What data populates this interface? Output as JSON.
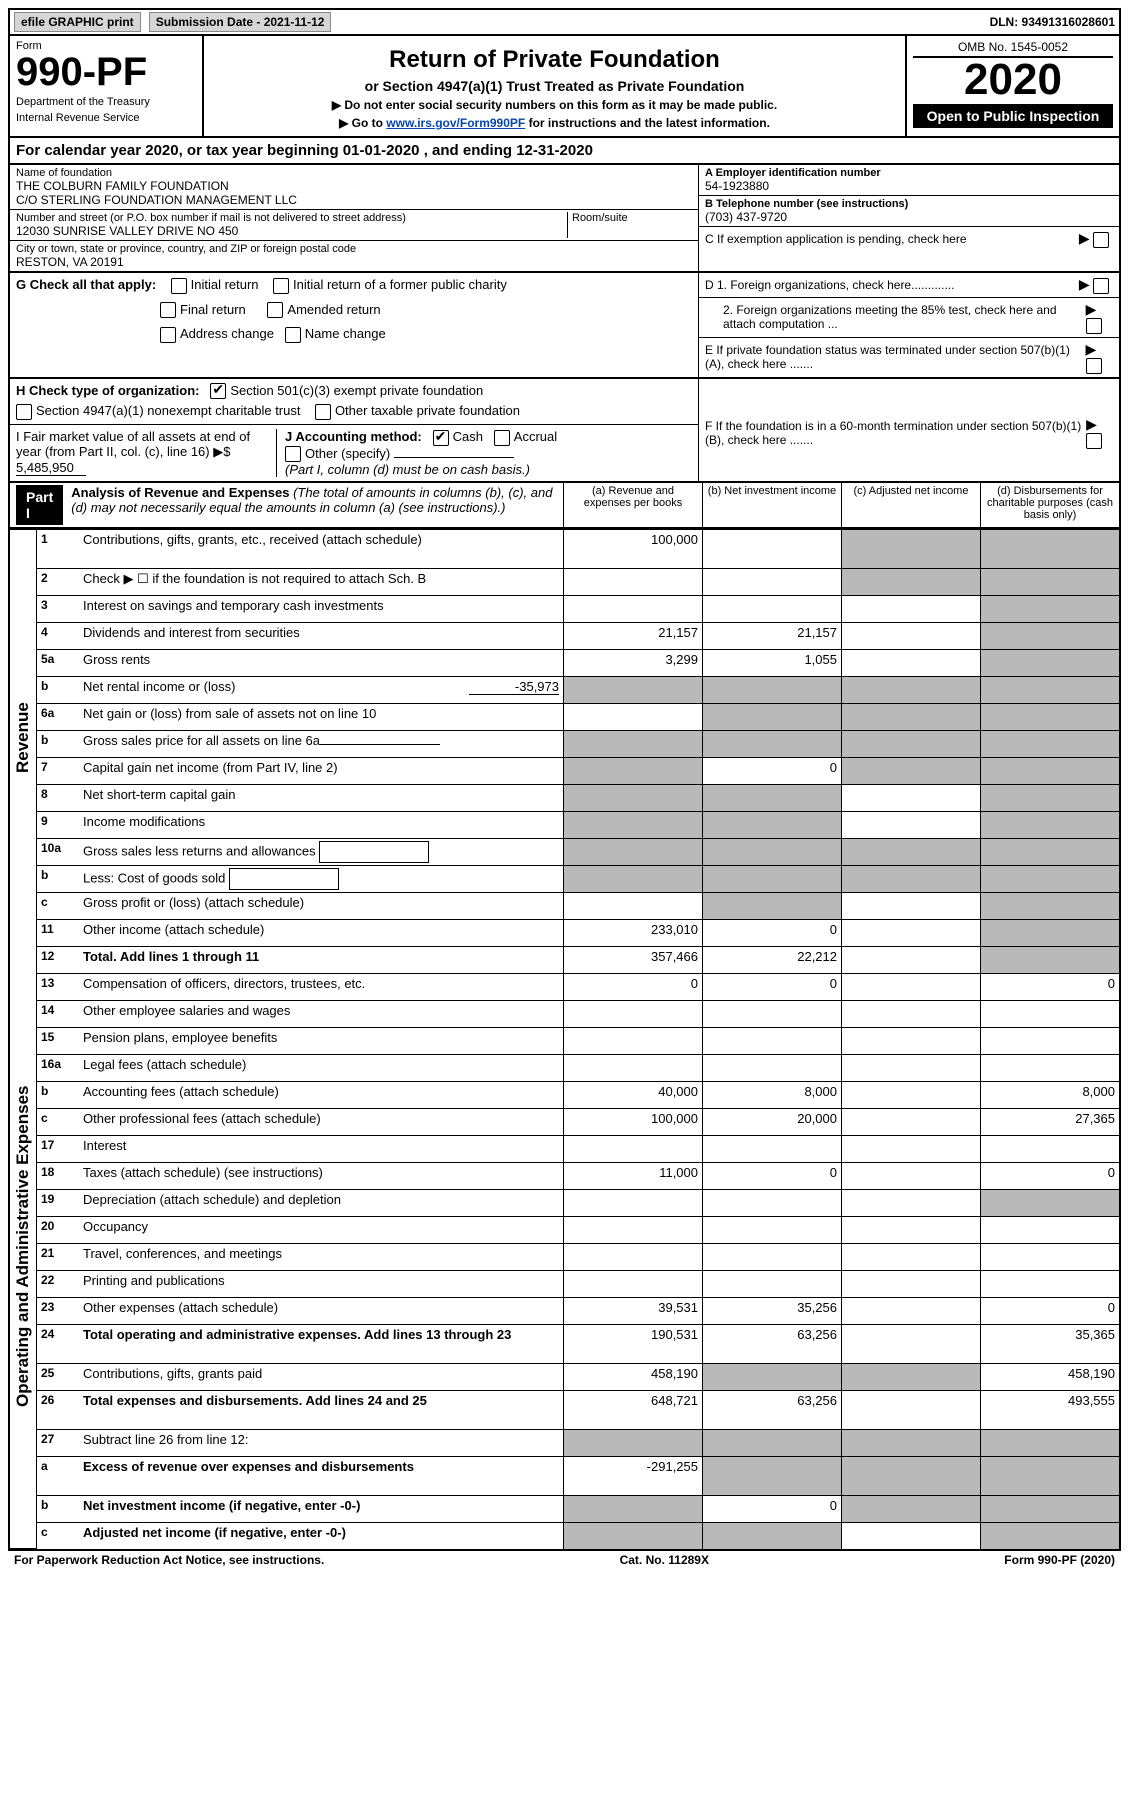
{
  "top_bar": {
    "efile": "efile GRAPHIC print",
    "sub_label": "Submission Date - 2021-11-12",
    "dln": "DLN: 93491316028601"
  },
  "header": {
    "form_label": "Form",
    "form_number": "990-PF",
    "dept": "Department of the Treasury",
    "irs": "Internal Revenue Service",
    "title": "Return of Private Foundation",
    "subtitle": "or Section 4947(a)(1) Trust Treated as Private Foundation",
    "note1": "▶ Do not enter social security numbers on this form as it may be made public.",
    "note2_pre": "▶ Go to ",
    "note2_link": "www.irs.gov/Form990PF",
    "note2_post": " for instructions and the latest information.",
    "omb": "OMB No. 1545-0052",
    "year": "2020",
    "open": "Open to Public Inspection"
  },
  "cal_year": "For calendar year 2020, or tax year beginning 01-01-2020                , and ending 12-31-2020",
  "id": {
    "name_lbl": "Name of foundation",
    "name1": "THE COLBURN FAMILY FOUNDATION",
    "name2": "C/O STERLING FOUNDATION MANAGEMENT LLC",
    "addr_lbl": "Number and street (or P.O. box number if mail is not delivered to street address)",
    "addr": "12030 SUNRISE VALLEY DRIVE NO 450",
    "room_lbl": "Room/suite",
    "city_lbl": "City or town, state or province, country, and ZIP or foreign postal code",
    "city": "RESTON, VA  20191",
    "ein_lbl": "A Employer identification number",
    "ein": "54-1923880",
    "tel_lbl": "B Telephone number (see instructions)",
    "tel": "(703) 437-9720",
    "c": "C If exemption application is pending, check here",
    "d1": "D 1. Foreign organizations, check here.............",
    "d2": "2. Foreign organizations meeting the 85% test, check here and attach computation ...",
    "e": "E  If private foundation status was terminated under section 507(b)(1)(A), check here .......",
    "f": "F  If the foundation is in a 60-month termination under section 507(b)(1)(B), check here .......",
    "g": "G Check all that apply:",
    "g_initial": "Initial return",
    "g_initial_former": "Initial return of a former public charity",
    "g_final": "Final return",
    "g_amended": "Amended return",
    "g_address": "Address change",
    "g_name": "Name change",
    "h": "H Check type of organization:",
    "h_501": "Section 501(c)(3) exempt private foundation",
    "h_4947": "Section 4947(a)(1) nonexempt charitable trust",
    "h_other": "Other taxable private foundation",
    "i": "I Fair market value of all assets at end of year (from Part II, col. (c), line 16) ▶$",
    "i_val": "5,485,950",
    "j": "J Accounting method:",
    "j_cash": "Cash",
    "j_accrual": "Accrual",
    "j_other": "Other (specify)",
    "j_note": "(Part I, column (d) must be on cash basis.)"
  },
  "part_i": {
    "label": "Part I",
    "title": "Analysis of Revenue and Expenses",
    "subtitle": "(The total of amounts in columns (b), (c), and (d) may not necessarily equal the amounts in column (a) (see instructions).)",
    "col_a": "(a)   Revenue and expenses per books",
    "col_b": "(b)   Net investment income",
    "col_c": "(c)   Adjusted net income",
    "col_d": "(d)   Disbursements for charitable purposes (cash basis only)",
    "side_rev": "Revenue",
    "side_exp": "Operating and Administrative Expenses"
  },
  "rows": [
    {
      "n": "1",
      "label": "Contributions, gifts, grants, etc., received (attach schedule)",
      "a": "100,000",
      "b": "",
      "c": "g",
      "d": "g",
      "tall": true
    },
    {
      "n": "2",
      "label": "Check ▶ ☐ if the foundation is not required to attach Sch. B",
      "a": "",
      "b": "",
      "c": "g",
      "d": "g"
    },
    {
      "n": "3",
      "label": "Interest on savings and temporary cash investments",
      "a": "",
      "b": "",
      "c": "",
      "d": "g"
    },
    {
      "n": "4",
      "label": "Dividends and interest from securities",
      "a": "21,157",
      "b": "21,157",
      "c": "",
      "d": "g"
    },
    {
      "n": "5a",
      "label": "Gross rents",
      "a": "3,299",
      "b": "1,055",
      "c": "",
      "d": "g"
    },
    {
      "n": "b",
      "label": "Net rental income or (loss)",
      "inline": "-35,973",
      "a": "g",
      "b": "g",
      "c": "g",
      "d": "g"
    },
    {
      "n": "6a",
      "label": "Net gain or (loss) from sale of assets not on line 10",
      "a": "",
      "b": "g",
      "c": "g",
      "d": "g"
    },
    {
      "n": "b",
      "label": "Gross sales price for all assets on line 6a",
      "underline": true,
      "a": "g",
      "b": "g",
      "c": "g",
      "d": "g"
    },
    {
      "n": "7",
      "label": "Capital gain net income (from Part IV, line 2)",
      "a": "g",
      "b": "0",
      "c": "g",
      "d": "g"
    },
    {
      "n": "8",
      "label": "Net short-term capital gain",
      "a": "g",
      "b": "g",
      "c": "",
      "d": "g"
    },
    {
      "n": "9",
      "label": "Income modifications",
      "a": "g",
      "b": "g",
      "c": "",
      "d": "g"
    },
    {
      "n": "10a",
      "label": "Gross sales less returns and allowances",
      "box": true,
      "a": "g",
      "b": "g",
      "c": "g",
      "d": "g"
    },
    {
      "n": "b",
      "label": "Less: Cost of goods sold",
      "box": true,
      "a": "g",
      "b": "g",
      "c": "g",
      "d": "g"
    },
    {
      "n": "c",
      "label": "Gross profit or (loss) (attach schedule)",
      "a": "",
      "b": "g",
      "c": "",
      "d": "g"
    },
    {
      "n": "11",
      "label": "Other income (attach schedule)",
      "a": "233,010",
      "b": "0",
      "c": "",
      "d": "g"
    },
    {
      "n": "12",
      "label": "Total. Add lines 1 through 11",
      "bold": true,
      "a": "357,466",
      "b": "22,212",
      "c": "",
      "d": "g"
    },
    {
      "n": "13",
      "label": "Compensation of officers, directors, trustees, etc.",
      "a": "0",
      "b": "0",
      "c": "",
      "d": "0"
    },
    {
      "n": "14",
      "label": "Other employee salaries and wages",
      "a": "",
      "b": "",
      "c": "",
      "d": ""
    },
    {
      "n": "15",
      "label": "Pension plans, employee benefits",
      "a": "",
      "b": "",
      "c": "",
      "d": ""
    },
    {
      "n": "16a",
      "label": "Legal fees (attach schedule)",
      "a": "",
      "b": "",
      "c": "",
      "d": ""
    },
    {
      "n": "b",
      "label": "Accounting fees (attach schedule)",
      "a": "40,000",
      "b": "8,000",
      "c": "",
      "d": "8,000"
    },
    {
      "n": "c",
      "label": "Other professional fees (attach schedule)",
      "a": "100,000",
      "b": "20,000",
      "c": "",
      "d": "27,365"
    },
    {
      "n": "17",
      "label": "Interest",
      "a": "",
      "b": "",
      "c": "",
      "d": ""
    },
    {
      "n": "18",
      "label": "Taxes (attach schedule) (see instructions)",
      "a": "11,000",
      "b": "0",
      "c": "",
      "d": "0"
    },
    {
      "n": "19",
      "label": "Depreciation (attach schedule) and depletion",
      "a": "",
      "b": "",
      "c": "",
      "d": "g"
    },
    {
      "n": "20",
      "label": "Occupancy",
      "a": "",
      "b": "",
      "c": "",
      "d": ""
    },
    {
      "n": "21",
      "label": "Travel, conferences, and meetings",
      "a": "",
      "b": "",
      "c": "",
      "d": ""
    },
    {
      "n": "22",
      "label": "Printing and publications",
      "a": "",
      "b": "",
      "c": "",
      "d": ""
    },
    {
      "n": "23",
      "label": "Other expenses (attach schedule)",
      "a": "39,531",
      "b": "35,256",
      "c": "",
      "d": "0"
    },
    {
      "n": "24",
      "label": "Total operating and administrative expenses. Add lines 13 through 23",
      "bold": true,
      "a": "190,531",
      "b": "63,256",
      "c": "",
      "d": "35,365",
      "tall": true
    },
    {
      "n": "25",
      "label": "Contributions, gifts, grants paid",
      "a": "458,190",
      "b": "g",
      "c": "g",
      "d": "458,190"
    },
    {
      "n": "26",
      "label": "Total expenses and disbursements. Add lines 24 and 25",
      "bold": true,
      "a": "648,721",
      "b": "63,256",
      "c": "",
      "d": "493,555",
      "tall": true
    },
    {
      "n": "27",
      "label": "Subtract line 26 from line 12:",
      "a": "g",
      "b": "g",
      "c": "g",
      "d": "g"
    },
    {
      "n": "a",
      "label": "Excess of revenue over expenses and disbursements",
      "bold": true,
      "a": "-291,255",
      "b": "g",
      "c": "g",
      "d": "g",
      "tall": true
    },
    {
      "n": "b",
      "label": "Net investment income (if negative, enter -0-)",
      "bold": true,
      "a": "g",
      "b": "0",
      "c": "g",
      "d": "g"
    },
    {
      "n": "c",
      "label": "Adjusted net income (if negative, enter -0-)",
      "bold": true,
      "a": "g",
      "b": "g",
      "c": "",
      "d": "g"
    }
  ],
  "footer": {
    "left": "For Paperwork Reduction Act Notice, see instructions.",
    "mid": "Cat. No. 11289X",
    "right": "Form 990-PF (2020)"
  }
}
